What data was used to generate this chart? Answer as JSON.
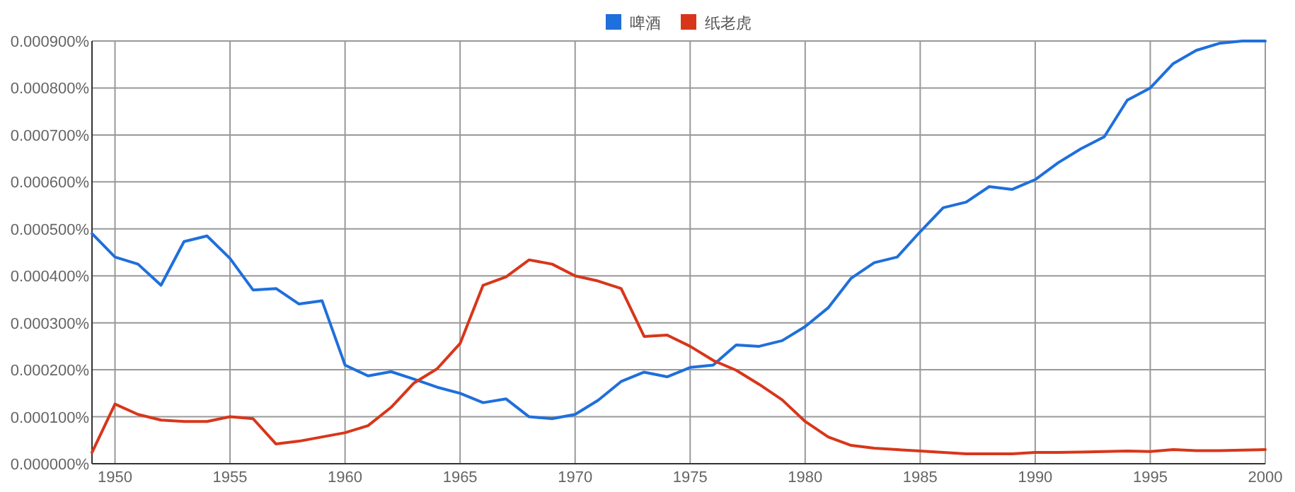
{
  "chart_data": {
    "type": "line",
    "legend": "top",
    "grid": true,
    "x": [
      1949,
      1950,
      1951,
      1952,
      1953,
      1954,
      1955,
      1956,
      1957,
      1958,
      1959,
      1960,
      1961,
      1962,
      1963,
      1964,
      1965,
      1966,
      1967,
      1968,
      1969,
      1970,
      1971,
      1972,
      1973,
      1974,
      1975,
      1976,
      1977,
      1978,
      1979,
      1980,
      1981,
      1982,
      1983,
      1984,
      1985,
      1986,
      1987,
      1988,
      1989,
      1990,
      1991,
      1992,
      1993,
      1994,
      1995,
      1996,
      1997,
      1998,
      1999,
      2000
    ],
    "xlim": [
      1949,
      2000
    ],
    "xticks": [
      1950,
      1955,
      1960,
      1965,
      1970,
      1975,
      1980,
      1985,
      1990,
      1995,
      2000
    ],
    "ylim": [
      0,
      0.0009
    ],
    "yticks": [
      {
        "value": 0,
        "label": "0.000000%"
      },
      {
        "value": 0.0001,
        "label": "0.000100%"
      },
      {
        "value": 0.0002,
        "label": "0.000200%"
      },
      {
        "value": 0.0003,
        "label": "0.000300%"
      },
      {
        "value": 0.0004,
        "label": "0.000400%"
      },
      {
        "value": 0.0005,
        "label": "0.000500%"
      },
      {
        "value": 0.0006,
        "label": "0.000600%"
      },
      {
        "value": 0.0007,
        "label": "0.000700%"
      },
      {
        "value": 0.0008,
        "label": "0.000800%"
      },
      {
        "value": 0.0009,
        "label": "0.000900%"
      }
    ],
    "series": [
      {
        "name": "啤酒",
        "color": "#1f6fdc",
        "values": [
          0.00049,
          0.00044,
          0.000425,
          0.00038,
          0.000473,
          0.000485,
          0.000437,
          0.00037,
          0.000373,
          0.00034,
          0.000347,
          0.00021,
          0.000187,
          0.000196,
          0.00018,
          0.000163,
          0.00015,
          0.00013,
          0.000138,
          0.0001,
          9.6e-05,
          0.000105,
          0.000135,
          0.000175,
          0.000195,
          0.000185,
          0.000205,
          0.00021,
          0.000253,
          0.00025,
          0.000262,
          0.000292,
          0.000332,
          0.000395,
          0.000428,
          0.00044,
          0.000494,
          0.000545,
          0.000557,
          0.00059,
          0.000584,
          0.000605,
          0.000641,
          0.000671,
          0.000696,
          0.000774,
          0.0008,
          0.000852,
          0.00088,
          0.000895,
          0.0009,
          0.0009
        ]
      },
      {
        "name": "纸老虎",
        "color": "#d8361a",
        "values": [
          2.4e-05,
          0.000127,
          0.000105,
          9.3e-05,
          9e-05,
          9e-05,
          0.0001,
          9.6e-05,
          4.2e-05,
          4.8e-05,
          5.7e-05,
          6.6e-05,
          8.1e-05,
          0.00012,
          0.000172,
          0.000202,
          0.000256,
          0.00038,
          0.000398,
          0.000434,
          0.000425,
          0.0004,
          0.000389,
          0.000373,
          0.000271,
          0.000274,
          0.00025,
          0.00022,
          0.000199,
          0.000169,
          0.000136,
          9e-05,
          5.7e-05,
          3.9e-05,
          3.3e-05,
          3e-05,
          2.7e-05,
          2.4e-05,
          2.1e-05,
          2.1e-05,
          2.1e-05,
          2.4e-05,
          2.4e-05,
          2.5e-05,
          2.6e-05,
          2.7e-05,
          2.6e-05,
          3e-05,
          2.8e-05,
          2.8e-05,
          2.9e-05,
          3e-05
        ]
      }
    ]
  }
}
